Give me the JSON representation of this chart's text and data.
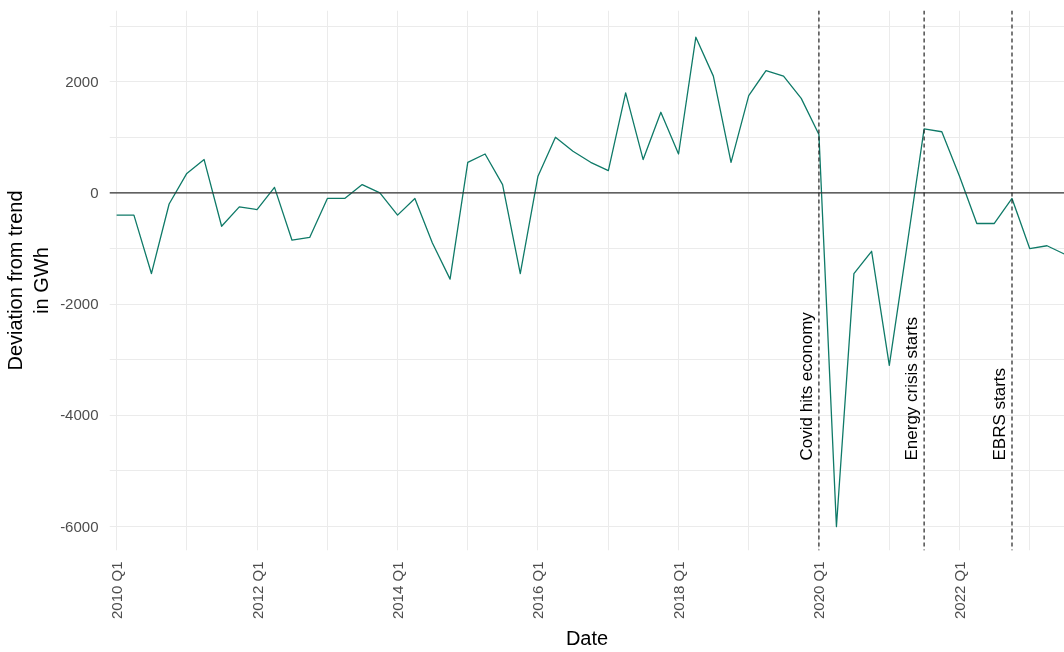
{
  "chart_data": {
    "type": "line",
    "xlabel": "Date",
    "ylabel": "Deviation from trend\nin GWh",
    "x": [
      "2010-01",
      "2010-04",
      "2010-07",
      "2010-10",
      "2011-01",
      "2011-04",
      "2011-07",
      "2011-10",
      "2012-01",
      "2012-04",
      "2012-07",
      "2012-10",
      "2013-01",
      "2013-04",
      "2013-07",
      "2013-10",
      "2014-01",
      "2014-04",
      "2014-07",
      "2014-10",
      "2015-01",
      "2015-04",
      "2015-07",
      "2015-10",
      "2016-01",
      "2016-04",
      "2016-07",
      "2016-10",
      "2017-01",
      "2017-04",
      "2017-07",
      "2017-10",
      "2018-01",
      "2018-04",
      "2018-07",
      "2018-10",
      "2019-01",
      "2019-04",
      "2019-07",
      "2019-10",
      "2020-01",
      "2020-04",
      "2020-07",
      "2020-10",
      "2021-01",
      "2021-04",
      "2021-07",
      "2021-10",
      "2022-01",
      "2022-04",
      "2022-07",
      "2022-10",
      "2023-01",
      "2023-04",
      "2023-07"
    ],
    "series": [
      {
        "color": "#0f7a68",
        "values": [
          -400,
          -400,
          -1450,
          -200,
          350,
          600,
          -600,
          -250,
          -300,
          100,
          -850,
          -800,
          -100,
          -100,
          150,
          0,
          -400,
          -100,
          -900,
          -1550,
          550,
          700,
          150,
          -1450,
          300,
          1000,
          750,
          550,
          400,
          1800,
          600,
          1450,
          700,
          2800,
          2100,
          550,
          1750,
          2200,
          2100,
          1700,
          1050,
          -6000,
          -1450,
          -1050,
          -3100,
          -1000,
          1150,
          1100,
          300,
          -550,
          -550,
          -100,
          -1000,
          -950,
          -1100
        ]
      }
    ],
    "xlim": [
      "2009-11-25",
      "2023-07-01"
    ],
    "xticks": [
      {
        "value": "2010-01",
        "label": "2010 Q1"
      },
      {
        "value": "2011-01",
        "label": null
      },
      {
        "value": "2012-01",
        "label": "2012 Q1"
      },
      {
        "value": "2013-01",
        "label": null
      },
      {
        "value": "2014-01",
        "label": "2014 Q1"
      },
      {
        "value": "2015-01",
        "label": null
      },
      {
        "value": "2016-01",
        "label": "2016 Q1"
      },
      {
        "value": "2017-01",
        "label": null
      },
      {
        "value": "2018-01",
        "label": "2018 Q1"
      },
      {
        "value": "2019-01",
        "label": null
      },
      {
        "value": "2020-01",
        "label": "2020 Q1"
      },
      {
        "value": "2021-01",
        "label": null
      },
      {
        "value": "2022-01",
        "label": "2022 Q1"
      },
      {
        "value": "2023-01",
        "label": null
      }
    ],
    "ylim": [
      -6430,
      3280
    ],
    "yticks": [
      -6000,
      {
        "value": -5000,
        "label": null
      },
      -4000,
      {
        "value": -3000,
        "label": null
      },
      -2000,
      {
        "value": -1000,
        "label": null
      },
      0,
      {
        "value": 1000,
        "label": null
      },
      2000,
      {
        "value": 3000,
        "label": null
      }
    ],
    "grid": true,
    "marker": "none",
    "line_style": "solid",
    "ref_lines": [
      {
        "axis": "y",
        "value": 0,
        "color": "#333333",
        "line_style": "solid"
      },
      {
        "axis": "x",
        "value": "2020-01",
        "label": "Covid hits economy",
        "color": "#222222",
        "line_style": "dashed"
      },
      {
        "axis": "x",
        "value": "2021-07",
        "label": "Energy crisis starts",
        "color": "#222222",
        "line_style": "dashed"
      },
      {
        "axis": "x",
        "value": "2022-10",
        "label": "EBRS starts",
        "color": "#222222",
        "line_style": "dashed"
      }
    ]
  }
}
